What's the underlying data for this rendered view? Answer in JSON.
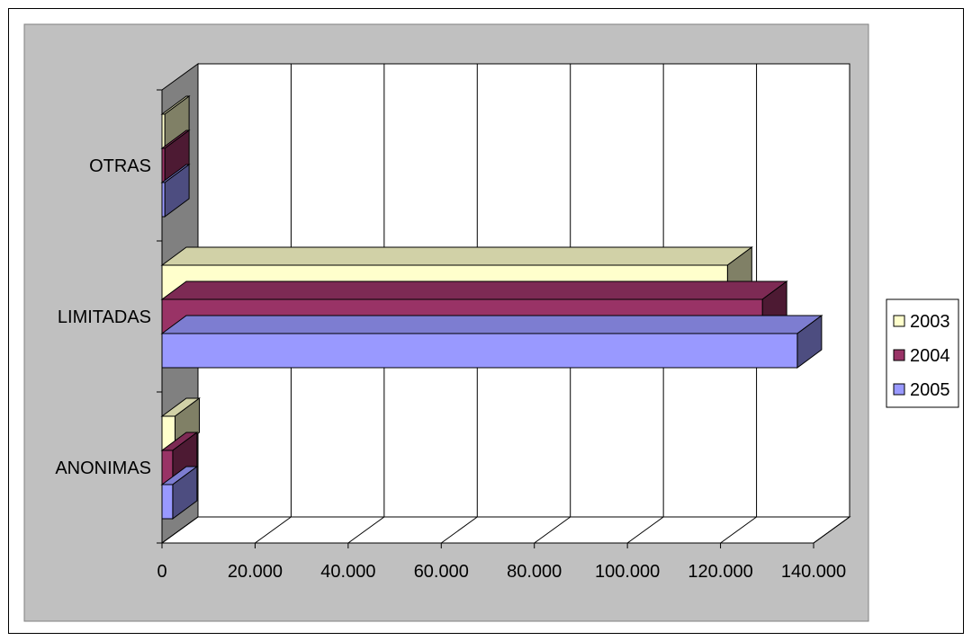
{
  "chart_data": {
    "type": "bar",
    "orientation": "horizontal",
    "three_d": true,
    "categories": [
      "ANONIMAS",
      "LIMITADAS",
      "OTRAS"
    ],
    "series": [
      {
        "name": "2003",
        "values": [
          2800,
          121500,
          600
        ],
        "color": "#FFFFCC"
      },
      {
        "name": "2004",
        "values": [
          2300,
          129000,
          600
        ],
        "color": "#993366"
      },
      {
        "name": "2005",
        "values": [
          2300,
          136500,
          600
        ],
        "color": "#9999FF"
      }
    ],
    "xlim": [
      0,
      140000
    ],
    "x_ticks": [
      "0",
      "20.000",
      "40.000",
      "60.000",
      "80.000",
      "100.000",
      "120.000",
      "140.000"
    ],
    "grid": true,
    "legend": "right",
    "plot_background": "#C0C0C0",
    "wall_color": "#808080",
    "floor_color": "#ffffff"
  }
}
